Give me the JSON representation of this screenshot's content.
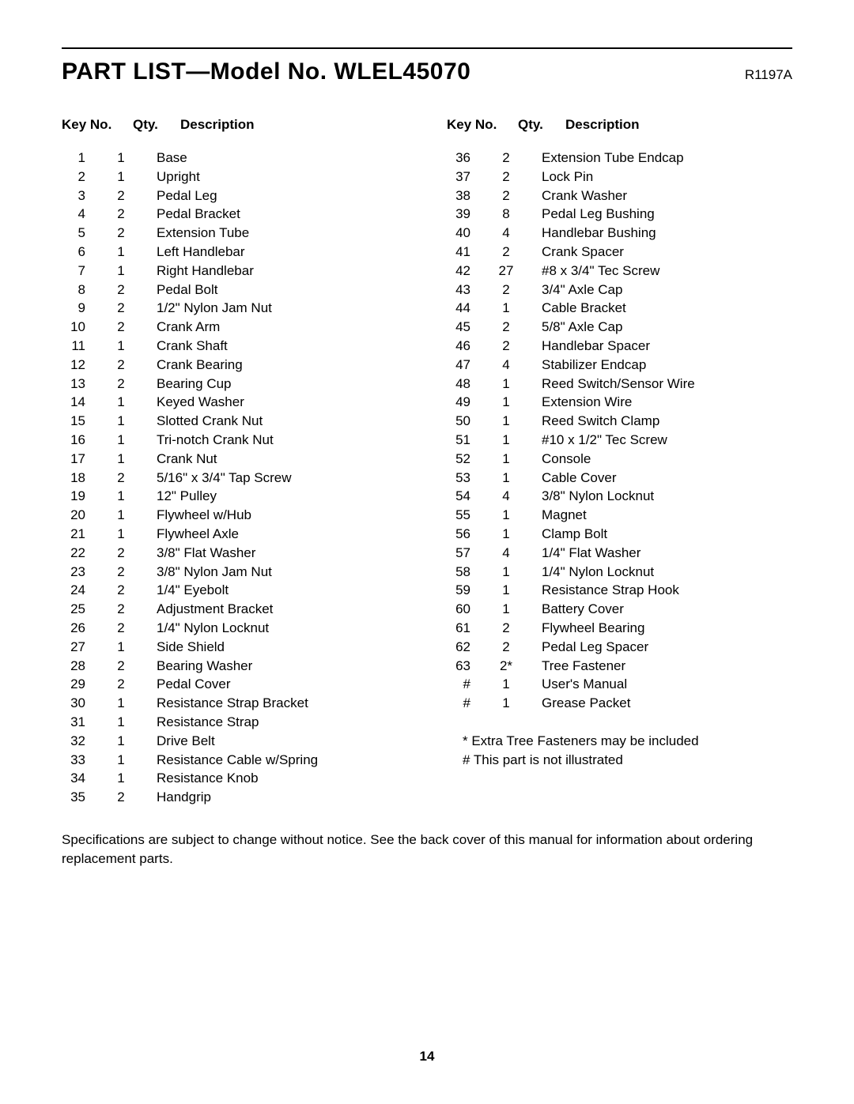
{
  "header": {
    "title": "PART LIST—Model No. WLEL45070",
    "doc_code": "R1197A"
  },
  "column_headers": {
    "key": "Key No.",
    "qty": "Qty.",
    "desc": "Description"
  },
  "parts_left": [
    {
      "key": "1",
      "qty": "1",
      "desc": "Base"
    },
    {
      "key": "2",
      "qty": "1",
      "desc": "Upright"
    },
    {
      "key": "3",
      "qty": "2",
      "desc": "Pedal Leg"
    },
    {
      "key": "4",
      "qty": "2",
      "desc": "Pedal Bracket"
    },
    {
      "key": "5",
      "qty": "2",
      "desc": "Extension Tube"
    },
    {
      "key": "6",
      "qty": "1",
      "desc": "Left Handlebar"
    },
    {
      "key": "7",
      "qty": "1",
      "desc": "Right Handlebar"
    },
    {
      "key": "8",
      "qty": "2",
      "desc": "Pedal Bolt"
    },
    {
      "key": "9",
      "qty": "2",
      "desc": "1/2\" Nylon Jam Nut"
    },
    {
      "key": "10",
      "qty": "2",
      "desc": "Crank Arm"
    },
    {
      "key": "11",
      "qty": "1",
      "desc": "Crank Shaft"
    },
    {
      "key": "12",
      "qty": "2",
      "desc": "Crank Bearing"
    },
    {
      "key": "13",
      "qty": "2",
      "desc": "Bearing Cup"
    },
    {
      "key": "14",
      "qty": "1",
      "desc": "Keyed Washer"
    },
    {
      "key": "15",
      "qty": "1",
      "desc": "Slotted Crank Nut"
    },
    {
      "key": "16",
      "qty": "1",
      "desc": "Tri-notch Crank Nut"
    },
    {
      "key": "17",
      "qty": "1",
      "desc": "Crank Nut"
    },
    {
      "key": "18",
      "qty": "2",
      "desc": "5/16\" x 3/4\" Tap Screw"
    },
    {
      "key": "19",
      "qty": "1",
      "desc": "12\" Pulley"
    },
    {
      "key": "20",
      "qty": "1",
      "desc": "Flywheel w/Hub"
    },
    {
      "key": "21",
      "qty": "1",
      "desc": "Flywheel Axle"
    },
    {
      "key": "22",
      "qty": "2",
      "desc": "3/8\" Flat Washer"
    },
    {
      "key": "23",
      "qty": "2",
      "desc": "3/8\" Nylon Jam Nut"
    },
    {
      "key": "24",
      "qty": "2",
      "desc": "1/4\" Eyebolt"
    },
    {
      "key": "25",
      "qty": "2",
      "desc": "Adjustment Bracket"
    },
    {
      "key": "26",
      "qty": "2",
      "desc": "1/4\" Nylon Locknut"
    },
    {
      "key": "27",
      "qty": "1",
      "desc": "Side Shield"
    },
    {
      "key": "28",
      "qty": "2",
      "desc": "Bearing Washer"
    },
    {
      "key": "29",
      "qty": "2",
      "desc": "Pedal Cover"
    },
    {
      "key": "30",
      "qty": "1",
      "desc": "Resistance Strap Bracket"
    },
    {
      "key": "31",
      "qty": "1",
      "desc": "Resistance Strap"
    },
    {
      "key": "32",
      "qty": "1",
      "desc": "Drive Belt"
    },
    {
      "key": "33",
      "qty": "1",
      "desc": "Resistance Cable w/Spring"
    },
    {
      "key": "34",
      "qty": "1",
      "desc": "Resistance Knob"
    },
    {
      "key": "35",
      "qty": "2",
      "desc": "Handgrip"
    }
  ],
  "parts_right": [
    {
      "key": "36",
      "qty": "2",
      "desc": "Extension Tube Endcap"
    },
    {
      "key": "37",
      "qty": "2",
      "desc": "Lock Pin"
    },
    {
      "key": "38",
      "qty": "2",
      "desc": "Crank Washer"
    },
    {
      "key": "39",
      "qty": "8",
      "desc": "Pedal Leg Bushing"
    },
    {
      "key": "40",
      "qty": "4",
      "desc": "Handlebar Bushing"
    },
    {
      "key": "41",
      "qty": "2",
      "desc": "Crank Spacer"
    },
    {
      "key": "42",
      "qty": "27",
      "desc": "#8 x 3/4\" Tec Screw"
    },
    {
      "key": "43",
      "qty": "2",
      "desc": "3/4\" Axle Cap"
    },
    {
      "key": "44",
      "qty": "1",
      "desc": "Cable Bracket"
    },
    {
      "key": "45",
      "qty": "2",
      "desc": "5/8\" Axle Cap"
    },
    {
      "key": "46",
      "qty": "2",
      "desc": "Handlebar Spacer"
    },
    {
      "key": "47",
      "qty": "4",
      "desc": "Stabilizer Endcap"
    },
    {
      "key": "48",
      "qty": "1",
      "desc": "Reed Switch/Sensor Wire"
    },
    {
      "key": "49",
      "qty": "1",
      "desc": "Extension Wire"
    },
    {
      "key": "50",
      "qty": "1",
      "desc": "Reed Switch Clamp"
    },
    {
      "key": "51",
      "qty": "1",
      "desc": "#10 x 1/2\" Tec Screw"
    },
    {
      "key": "52",
      "qty": "1",
      "desc": "Console"
    },
    {
      "key": "53",
      "qty": "1",
      "desc": "Cable Cover"
    },
    {
      "key": "54",
      "qty": "4",
      "desc": "3/8\" Nylon Locknut"
    },
    {
      "key": "55",
      "qty": "1",
      "desc": "Magnet"
    },
    {
      "key": "56",
      "qty": "1",
      "desc": "Clamp Bolt"
    },
    {
      "key": "57",
      "qty": "4",
      "desc": "1/4\" Flat Washer"
    },
    {
      "key": "58",
      "qty": "1",
      "desc": "1/4\" Nylon Locknut"
    },
    {
      "key": "59",
      "qty": "1",
      "desc": "Resistance Strap Hook"
    },
    {
      "key": "60",
      "qty": "1",
      "desc": "Battery Cover"
    },
    {
      "key": "61",
      "qty": "2",
      "desc": "Flywheel Bearing"
    },
    {
      "key": "62",
      "qty": "2",
      "desc": "Pedal Leg Spacer"
    },
    {
      "key": "63",
      "qty": "2*",
      "desc": "Tree Fastener"
    },
    {
      "key": "#",
      "qty": "1",
      "desc": "User's Manual"
    },
    {
      "key": "#",
      "qty": "1",
      "desc": "Grease Packet"
    }
  ],
  "notes": [
    "* Extra Tree Fasteners may be included",
    "# This part is not illustrated"
  ],
  "footer_note": "Specifications are subject to change without notice. See the back cover of this manual for information about ordering replacement parts.",
  "page_number": "14"
}
